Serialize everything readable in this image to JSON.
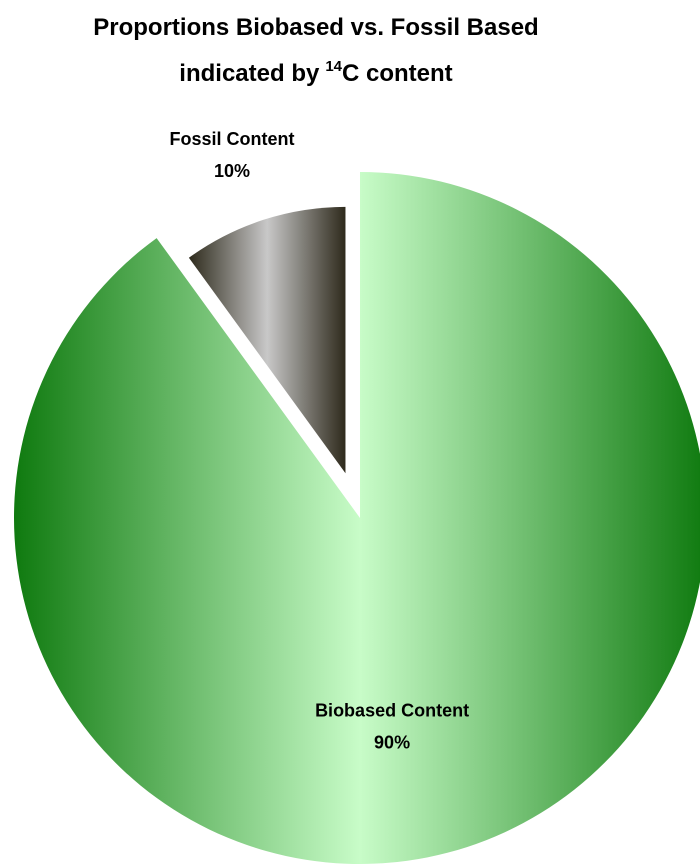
{
  "chart_data": {
    "type": "pie",
    "title": {
      "line1": "Proportions Biobased vs. Fossil Based",
      "line2_prefix": "indicated by",
      "line2_superscript": "14",
      "line2_suffix": "C content"
    },
    "slices": [
      {
        "name": "Biobased Content",
        "value": 90,
        "label": "90%",
        "color_dark": "#0f7a0f",
        "color_light": "#c8fcc8",
        "exploded": false
      },
      {
        "name": "Fossil Content",
        "value": 10,
        "label": "10%",
        "color_dark": "#2e2a1c",
        "color_light": "#c8c8c8",
        "exploded": true
      }
    ]
  }
}
